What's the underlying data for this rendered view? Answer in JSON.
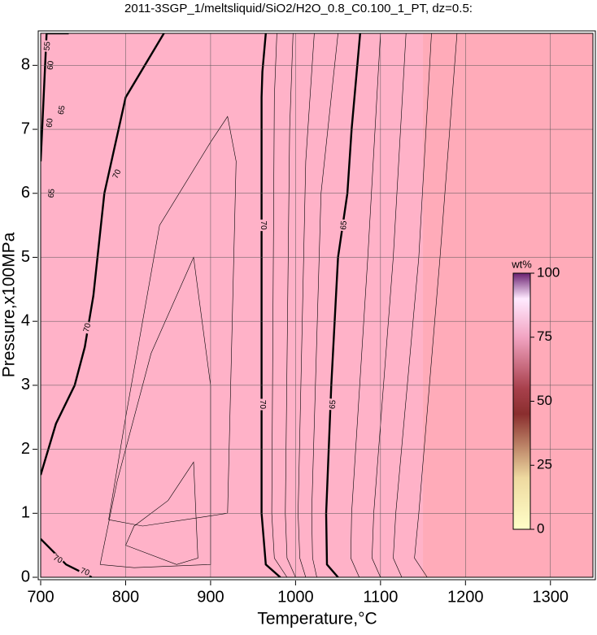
{
  "chart_data": {
    "type": "contour",
    "title": "2011-3SGP_1/meltsliquid/SiO2/H2O_0.8_C0.100_1_PT, dz=0.5:",
    "x_label": "Temperature,°C",
    "y_label": "Pressure,x100MPa",
    "xlim": [
      700,
      1350
    ],
    "xticks": [
      700,
      800,
      900,
      1000,
      1100,
      1200,
      1300
    ],
    "ylim": [
      0,
      8.5
    ],
    "yticks": [
      0,
      1,
      2,
      3,
      4,
      5,
      6,
      7,
      8
    ],
    "grid": true,
    "major_contours": [
      {
        "level": 70,
        "x": [
          700,
          718,
          740,
          752,
          757,
          762,
          775,
          800,
          845
        ],
        "y": [
          1.6,
          2.4,
          3.0,
          3.6,
          4.0,
          4.4,
          6.0,
          7.5,
          8.5
        ]
      },
      {
        "level": 70,
        "x": [
          982,
          965,
          960,
          960,
          961,
          965
        ],
        "y": [
          0,
          0.2,
          1.0,
          7.5,
          7.9,
          8.5
        ]
      },
      {
        "level": 65,
        "x": [
          1050,
          1037,
          1036,
          1042,
          1050,
          1061,
          1066,
          1076
        ],
        "y": [
          0,
          0.2,
          1.0,
          3.0,
          5.0,
          6.0,
          7.0,
          8.5
        ]
      },
      {
        "level": 70,
        "x": [
          700,
          730,
          760
        ],
        "y": [
          0.6,
          0.2,
          0
        ]
      },
      {
        "level": 65,
        "x": [
          700,
          707,
          733
        ],
        "y": [
          6.5,
          8.5,
          8.5
        ]
      }
    ],
    "minor_contours": [
      {
        "level": 69,
        "x": [
          990,
          975,
          972,
          975,
          978
        ],
        "y": [
          0,
          0.3,
          1.0,
          7.5,
          8.5
        ]
      },
      {
        "level": 68,
        "x": [
          1000,
          990,
          988,
          993,
          997
        ],
        "y": [
          0,
          0.3,
          1.0,
          7.0,
          8.5
        ]
      },
      {
        "level": 67,
        "x": [
          1012,
          1005,
          1003,
          1012,
          1022
        ],
        "y": [
          0,
          0.3,
          1.0,
          6.5,
          8.5
        ]
      },
      {
        "level": 66,
        "x": [
          1025,
          1020,
          1019,
          1030,
          1050
        ],
        "y": [
          0,
          0.3,
          1.0,
          6.0,
          8.5
        ]
      },
      {
        "level": 64,
        "x": [
          1075,
          1065,
          1066,
          1085,
          1100
        ],
        "y": [
          0,
          0.3,
          1.0,
          5.0,
          8.5
        ]
      },
      {
        "level": 63,
        "x": [
          1100,
          1090,
          1092,
          1115,
          1130
        ],
        "y": [
          0,
          0.3,
          1.0,
          5.0,
          8.5
        ]
      },
      {
        "level": 62,
        "x": [
          1125,
          1115,
          1118,
          1145,
          1160
        ],
        "y": [
          0,
          0.3,
          1.0,
          5.0,
          8.5
        ]
      },
      {
        "level": 61,
        "x": [
          1155,
          1140,
          1145,
          1170,
          1190
        ],
        "y": [
          0,
          0.3,
          1.0,
          5.0,
          8.5
        ]
      },
      {
        "level": 71,
        "x": [
          770,
          810,
          900,
          900,
          880,
          830,
          790,
          770
        ],
        "y": [
          0.2,
          0.15,
          0.2,
          3.0,
          5.0,
          3.5,
          1.5,
          0.2
        ]
      },
      {
        "level": 72,
        "x": [
          800,
          860,
          885,
          880,
          850,
          810,
          800
        ],
        "y": [
          0.5,
          0.2,
          0.3,
          1.8,
          1.2,
          0.8,
          0.5
        ]
      },
      {
        "level": 71,
        "x": [
          780,
          820,
          920,
          930,
          920,
          900,
          840,
          800,
          780
        ],
        "y": [
          0.9,
          0.8,
          1.0,
          6.5,
          7.2,
          6.8,
          5.5,
          2.5,
          0.9
        ]
      }
    ],
    "contour_labels": [
      {
        "text": "70",
        "x": 790,
        "y": 6.3,
        "angle": -65
      },
      {
        "text": "70",
        "x": 755,
        "y": 3.9,
        "angle": -75
      },
      {
        "text": "70",
        "x": 962,
        "y": 5.5,
        "angle": 90
      },
      {
        "text": "70",
        "x": 961,
        "y": 2.7,
        "angle": 90
      },
      {
        "text": "65",
        "x": 1057,
        "y": 5.5,
        "angle": -85
      },
      {
        "text": "65",
        "x": 1044,
        "y": 2.7,
        "angle": -85
      },
      {
        "text": "70",
        "x": 720,
        "y": 0.28,
        "angle": 30
      },
      {
        "text": "70",
        "x": 752,
        "y": 0.08,
        "angle": 20
      },
      {
        "text": "65",
        "x": 725,
        "y": 7.3,
        "angle": -80
      },
      {
        "text": "65",
        "x": 713,
        "y": 6.0,
        "angle": -85
      },
      {
        "text": "60",
        "x": 711,
        "y": 7.1,
        "angle": -85
      },
      {
        "text": "60",
        "x": 712,
        "y": 8.0,
        "angle": -85
      },
      {
        "text": "55",
        "x": 708,
        "y": 8.3,
        "angle": -85
      }
    ],
    "colorbar": {
      "label": "wt%",
      "lim": [
        0,
        100
      ],
      "ticks": [
        0,
        25,
        50,
        75,
        100
      ]
    }
  }
}
